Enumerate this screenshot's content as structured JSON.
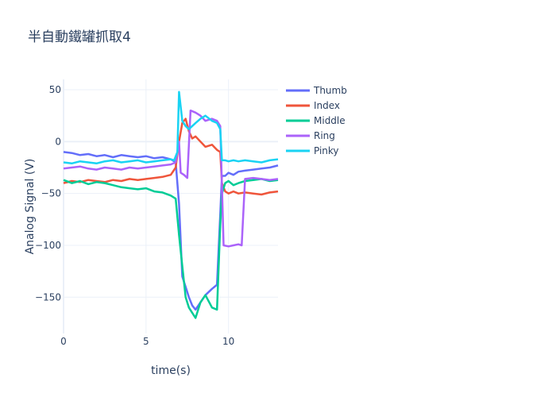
{
  "chart_data": {
    "type": "line",
    "title": "半自動鐵罐抓取4",
    "xlabel": "time(s)",
    "ylabel": "Analog Signal (V)",
    "xlim": [
      0,
      13
    ],
    "ylim": [
      -185,
      60
    ],
    "xticks": [
      0,
      5,
      10
    ],
    "yticks": [
      50,
      0,
      -50,
      -100,
      -150
    ],
    "grid": true,
    "legend_position": "right",
    "series": [
      {
        "name": "Thumb",
        "color": "#636efa",
        "x": [
          0,
          0.5,
          1,
          1.5,
          2,
          2.5,
          3,
          3.5,
          4,
          4.5,
          5,
          5.5,
          6,
          6.5,
          6.8,
          7,
          7.2,
          7.4,
          7.6,
          7.8,
          8,
          8.3,
          8.6,
          9,
          9.3,
          9.5,
          9.6,
          9.8,
          10,
          10.3,
          10.6,
          11,
          11.5,
          12,
          12.5,
          13
        ],
        "y": [
          -10,
          -11,
          -13,
          -12,
          -14,
          -13,
          -15,
          -13,
          -14,
          -15,
          -14,
          -16,
          -15,
          -17,
          -20,
          -60,
          -130,
          -140,
          -150,
          -158,
          -162,
          -155,
          -148,
          -142,
          -138,
          -70,
          -33,
          -33,
          -30,
          -32,
          -29,
          -28,
          -27,
          -26,
          -25,
          -23
        ]
      },
      {
        "name": "Index",
        "color": "#ef553b",
        "x": [
          0,
          0.5,
          1,
          1.5,
          2,
          2.5,
          3,
          3.5,
          4,
          4.5,
          5,
          5.5,
          6,
          6.5,
          6.8,
          7,
          7.2,
          7.4,
          7.6,
          7.8,
          8,
          8.3,
          8.6,
          9,
          9.3,
          9.5,
          9.6,
          9.8,
          10,
          10.3,
          10.6,
          11,
          11.5,
          12,
          12.5,
          13
        ],
        "y": [
          -40,
          -38,
          -39,
          -37,
          -38,
          -39,
          -37,
          -38,
          -36,
          -37,
          -36,
          -35,
          -34,
          -32,
          -25,
          0,
          18,
          22,
          10,
          3,
          5,
          0,
          -5,
          -3,
          -8,
          -10,
          -40,
          -48,
          -50,
          -48,
          -50,
          -49,
          -50,
          -51,
          -49,
          -48
        ]
      },
      {
        "name": "Middle",
        "color": "#00cc96",
        "x": [
          0,
          0.5,
          1,
          1.5,
          2,
          2.5,
          3,
          3.5,
          4,
          4.5,
          5,
          5.5,
          6,
          6.5,
          6.8,
          7,
          7.2,
          7.4,
          7.6,
          7.8,
          8,
          8.3,
          8.6,
          9,
          9.3,
          9.5,
          9.6,
          9.8,
          10,
          10.3,
          10.6,
          11,
          11.5,
          12,
          12.5,
          13
        ],
        "y": [
          -37,
          -40,
          -38,
          -41,
          -39,
          -40,
          -42,
          -44,
          -45,
          -46,
          -45,
          -48,
          -49,
          -52,
          -55,
          -90,
          -120,
          -150,
          -160,
          -165,
          -170,
          -155,
          -148,
          -160,
          -162,
          -80,
          -50,
          -40,
          -38,
          -42,
          -40,
          -38,
          -37,
          -36,
          -38,
          -37
        ]
      },
      {
        "name": "Ring",
        "color": "#ab63fa",
        "x": [
          0,
          0.5,
          1,
          1.5,
          2,
          2.5,
          3,
          3.5,
          4,
          4.5,
          5,
          5.5,
          6,
          6.5,
          6.8,
          7,
          7.1,
          7.3,
          7.5,
          7.7,
          8,
          8.3,
          8.6,
          9,
          9.3,
          9.5,
          9.7,
          10,
          10.3,
          10.6,
          10.8,
          11,
          11.5,
          12,
          12.5,
          13
        ],
        "y": [
          -26,
          -25,
          -24,
          -26,
          -27,
          -25,
          -26,
          -27,
          -25,
          -26,
          -25,
          -24,
          -23,
          -22,
          -20,
          0,
          -30,
          -32,
          -35,
          30,
          28,
          25,
          20,
          22,
          20,
          15,
          -100,
          -101,
          -100,
          -99,
          -100,
          -36,
          -35,
          -36,
          -37,
          -36
        ]
      },
      {
        "name": "Pinky",
        "color": "#19d3f3",
        "x": [
          0,
          0.5,
          1,
          1.5,
          2,
          2.5,
          3,
          3.5,
          4,
          4.5,
          5,
          5.5,
          6,
          6.5,
          6.7,
          6.9,
          7,
          7.2,
          7.4,
          7.6,
          8,
          8.3,
          8.6,
          9,
          9.3,
          9.5,
          9.6,
          9.8,
          10,
          10.3,
          10.6,
          11,
          11.5,
          12,
          12.5,
          13
        ],
        "y": [
          -20,
          -21,
          -19,
          -20,
          -21,
          -19,
          -18,
          -20,
          -19,
          -18,
          -20,
          -19,
          -18,
          -17,
          -18,
          -10,
          48,
          20,
          15,
          12,
          18,
          22,
          25,
          20,
          18,
          12,
          -18,
          -18,
          -19,
          -18,
          -19,
          -18,
          -19,
          -20,
          -18,
          -17
        ]
      }
    ]
  }
}
